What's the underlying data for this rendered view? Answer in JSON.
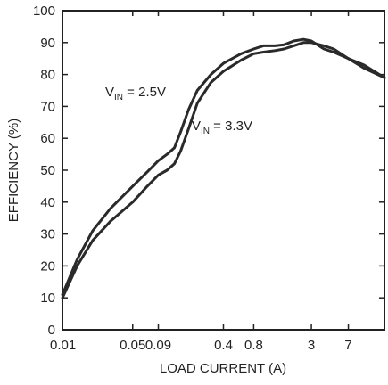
{
  "chart_data": {
    "type": "line",
    "title": "",
    "xlabel": "LOAD CURRENT (A)",
    "ylabel": "EFFICIENCY (%)",
    "x_scale": "log",
    "xlim": [
      0.01,
      16
    ],
    "ylim": [
      0,
      100
    ],
    "grid": false,
    "x_ticks": [
      {
        "value": 0.01,
        "label": "0.01"
      },
      {
        "value": 0.05,
        "label": "0.05"
      },
      {
        "value": 0.09,
        "label": "0.09"
      },
      {
        "value": 0.4,
        "label": "0.4"
      },
      {
        "value": 0.8,
        "label": "0.8"
      },
      {
        "value": 3,
        "label": "3"
      },
      {
        "value": 7,
        "label": "7"
      }
    ],
    "y_ticks": [
      0,
      10,
      20,
      30,
      40,
      50,
      60,
      70,
      80,
      90,
      100
    ],
    "series": [
      {
        "annotation": {
          "main": "V",
          "sub": "IN",
          "rest": " = 2.5V"
        },
        "points": [
          [
            0.01,
            11
          ],
          [
            0.014,
            22
          ],
          [
            0.02,
            31
          ],
          [
            0.03,
            38
          ],
          [
            0.05,
            45
          ],
          [
            0.07,
            49.5
          ],
          [
            0.09,
            53
          ],
          [
            0.11,
            55
          ],
          [
            0.13,
            57
          ],
          [
            0.15,
            62
          ],
          [
            0.18,
            69
          ],
          [
            0.22,
            75
          ],
          [
            0.3,
            80
          ],
          [
            0.4,
            83.5
          ],
          [
            0.6,
            86.5
          ],
          [
            0.8,
            88
          ],
          [
            1.0,
            89
          ],
          [
            1.3,
            89
          ],
          [
            1.6,
            89.3
          ],
          [
            2.0,
            90.5
          ],
          [
            2.5,
            91
          ],
          [
            3.0,
            90.5
          ],
          [
            4.0,
            88
          ],
          [
            5.0,
            87
          ],
          [
            7.0,
            85
          ],
          [
            10.0,
            82
          ],
          [
            16.0,
            79
          ]
        ]
      },
      {
        "annotation": {
          "main": "V",
          "sub": "IN",
          "rest": " = 3.3V"
        },
        "points": [
          [
            0.01,
            10
          ],
          [
            0.014,
            20
          ],
          [
            0.02,
            28
          ],
          [
            0.03,
            34
          ],
          [
            0.05,
            40
          ],
          [
            0.07,
            45
          ],
          [
            0.09,
            48.5
          ],
          [
            0.11,
            50
          ],
          [
            0.13,
            52
          ],
          [
            0.15,
            56
          ],
          [
            0.18,
            63
          ],
          [
            0.22,
            71
          ],
          [
            0.3,
            77.5
          ],
          [
            0.4,
            81
          ],
          [
            0.6,
            84.5
          ],
          [
            0.8,
            86.5
          ],
          [
            1.0,
            87
          ],
          [
            1.3,
            87.5
          ],
          [
            1.6,
            88
          ],
          [
            2.0,
            89
          ],
          [
            2.5,
            90
          ],
          [
            3.0,
            90
          ],
          [
            4.0,
            89
          ],
          [
            5.0,
            88
          ],
          [
            7.0,
            85
          ],
          [
            10.0,
            83
          ],
          [
            16.0,
            79
          ]
        ]
      }
    ]
  }
}
